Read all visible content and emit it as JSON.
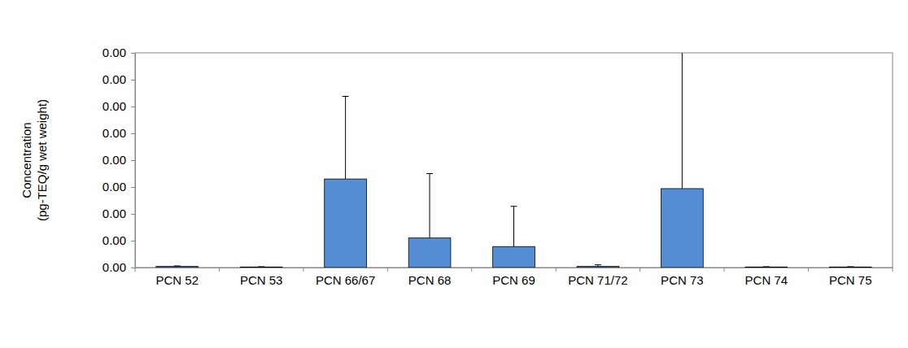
{
  "chart_data": {
    "type": "bar",
    "ylabel": [
      "Concentration",
      "(pg-TEQ/g wet weight)"
    ],
    "categories": [
      "PCN 52",
      "PCN 53",
      "PCN 66/67",
      "PCN 68",
      "PCN 69",
      "PCN 71/72",
      "PCN 73",
      "PCN 74",
      "PCN 75"
    ],
    "values": [
      2e-05,
      1e-05,
      0.00165,
      0.00055,
      0.00039,
      2e-05,
      0.00147,
      1e-05,
      1e-05
    ],
    "errors": [
      1e-05,
      5e-06,
      0.00154,
      0.0012,
      0.00075,
      3e-05,
      0.00256,
      5e-06,
      5e-06
    ],
    "color": "#558ed5",
    "ylim": [
      0,
      0.004
    ],
    "yticks": [
      {
        "value": 0,
        "label": "0.00"
      },
      {
        "value": 0.0005,
        "label": "0.00"
      },
      {
        "value": 0.001,
        "label": "0.00"
      },
      {
        "value": 0.0015,
        "label": "0.00"
      },
      {
        "value": 0.002,
        "label": "0.00"
      },
      {
        "value": 0.0025,
        "label": "0.00"
      },
      {
        "value": 0.003,
        "label": "0.00"
      },
      {
        "value": 0.0035,
        "label": "0.00"
      },
      {
        "value": 0.004,
        "label": "0.00"
      }
    ],
    "grid": false
  }
}
